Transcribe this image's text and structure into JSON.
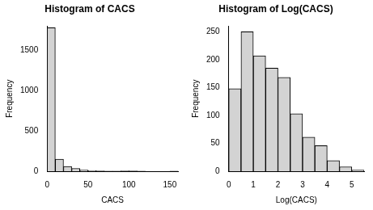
{
  "chart_data": [
    {
      "type": "histogram",
      "title": "Histogram of CACS",
      "x_label": "CACS",
      "y_label": "Frequency",
      "bins": [
        0,
        10,
        20,
        30,
        40,
        50,
        60,
        70,
        80,
        90,
        100,
        110,
        120,
        130,
        140,
        150,
        160
      ],
      "values": [
        1780,
        150,
        60,
        35,
        15,
        8,
        5,
        2,
        1,
        3,
        4,
        2,
        0,
        0,
        0,
        1
      ],
      "color": "#d3d3d3",
      "xlim": [
        0,
        160
      ],
      "xticks": [
        0,
        50,
        100,
        150
      ],
      "ylim": [
        0,
        1800
      ],
      "yticks": [
        0,
        500,
        1000,
        1500
      ],
      "grid": false
    },
    {
      "type": "histogram",
      "title": "Histogram of Log(CACS)",
      "x_label": "Log(CACS)",
      "y_label": "Frequency",
      "bins": [
        0,
        0.5,
        1,
        1.5,
        2,
        2.5,
        3,
        3.5,
        4,
        4.5,
        5,
        5.5
      ],
      "values": [
        148,
        250,
        207,
        185,
        168,
        103,
        61,
        46,
        19,
        8,
        2
      ],
      "color": "#d3d3d3",
      "xlim": [
        0,
        5.5
      ],
      "xticks": [
        0,
        1,
        2,
        3,
        4,
        5
      ],
      "ylim": [
        0,
        260
      ],
      "yticks": [
        0,
        50,
        100,
        150,
        200,
        250
      ],
      "grid": false
    }
  ]
}
